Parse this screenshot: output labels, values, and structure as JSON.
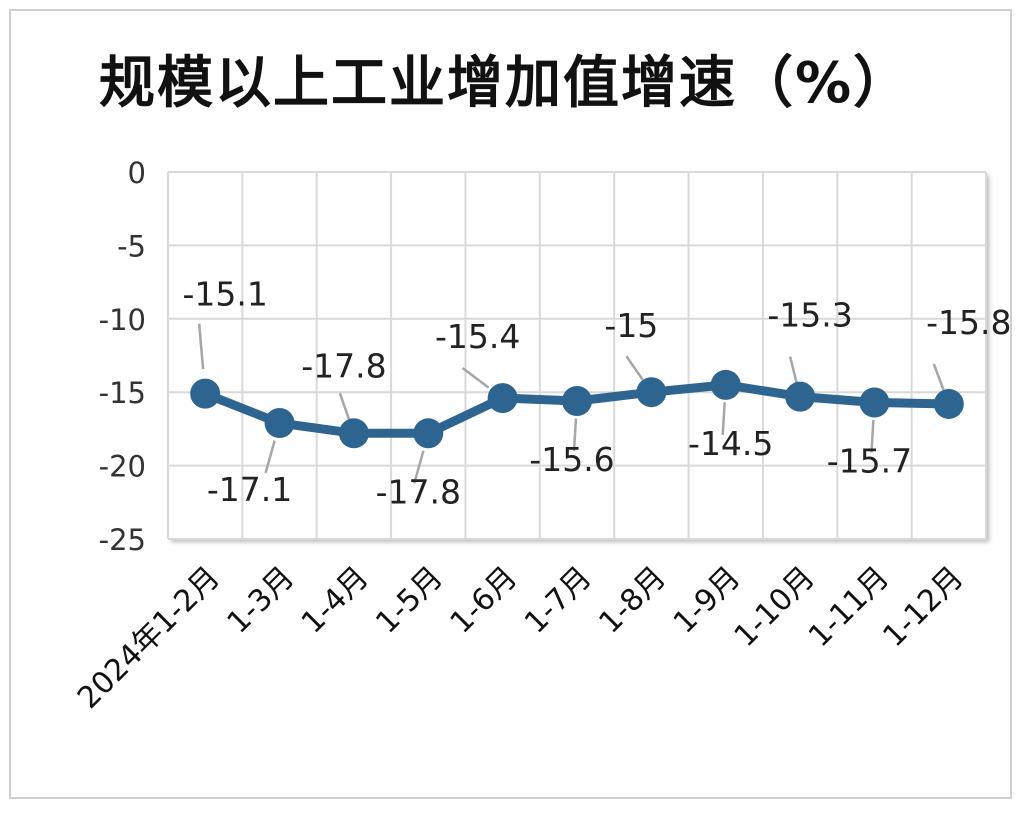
{
  "chart_data": {
    "type": "line",
    "title": "规模以上工业增加值增速（%）",
    "categories": [
      "2024年1-2月",
      "1-3月",
      "1-4月",
      "1-5月",
      "1-6月",
      "1-7月",
      "1-8月",
      "1-9月",
      "1-10月",
      "1-11月",
      "1-12月"
    ],
    "series": [
      {
        "values": [
          -15.1,
          -17.1,
          -17.8,
          -17.8,
          -15.4,
          -15.6,
          -15.0,
          -14.5,
          -15.3,
          -15.7,
          -15.8
        ]
      }
    ],
    "data_labels": [
      "-15.1",
      "-17.1",
      "-17.8",
      "-17.8",
      "-15.4",
      "-15.6",
      "-15",
      "-14.5",
      "-15.3",
      "-15.7",
      "-15.8"
    ],
    "label_side": [
      "above",
      "below",
      "above",
      "below",
      "above",
      "below",
      "above",
      "below",
      "above",
      "below",
      "above"
    ],
    "ylim": [
      -25,
      0
    ],
    "yticks": [
      "0",
      "-5",
      "-10",
      "-15",
      "-20",
      "-25"
    ],
    "ytick_values": [
      0,
      -5,
      -10,
      -15,
      -20,
      -25
    ],
    "grid": true,
    "legend": "none",
    "colors": {
      "line": "#2e6590",
      "marker": "#2e6590",
      "grid": "#d9d9d9",
      "leader": "#a6a6a6"
    }
  }
}
